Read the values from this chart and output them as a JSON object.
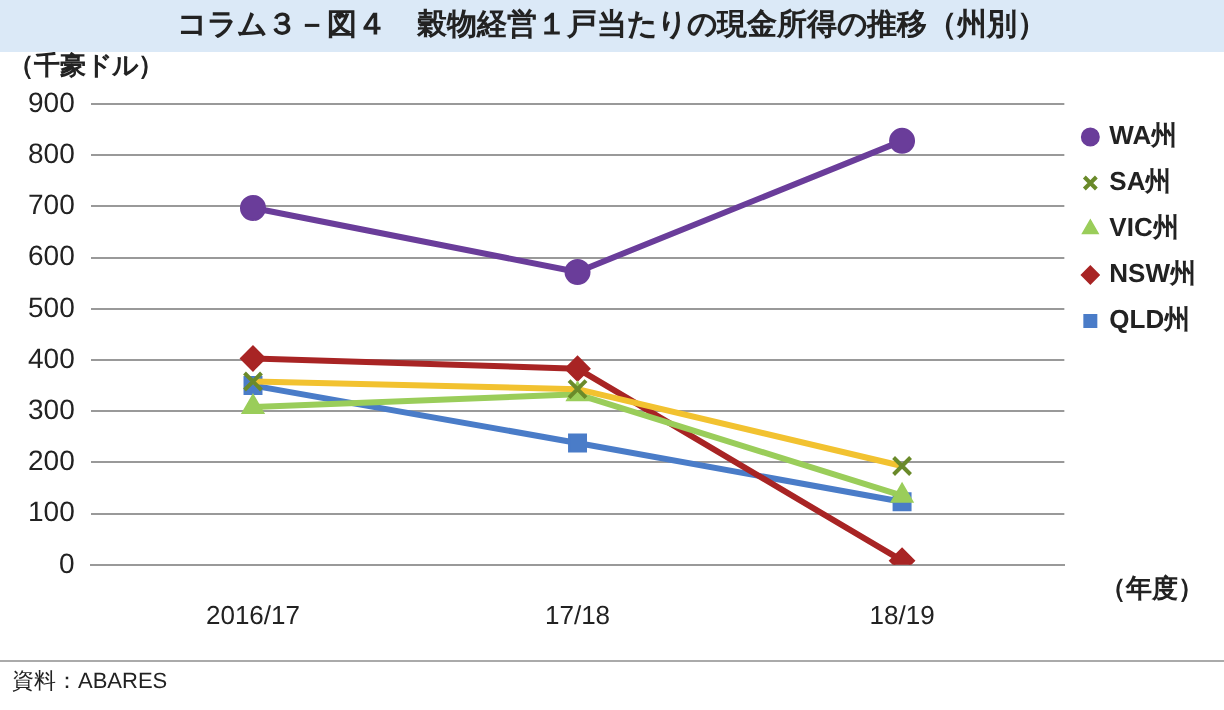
{
  "chart_data": {
    "type": "line",
    "title": "コラム３－図４　穀物経営１戸当たりの現金所得の推移（州別）",
    "ylabel": "（千豪ドル）",
    "xlabel": "（年度）",
    "categories": [
      "2016/17",
      "17/18",
      "18/19"
    ],
    "series": [
      {
        "name": "WA州",
        "color": "#6a3d9a",
        "marker": "circle",
        "values": [
          697,
          572,
          828
        ]
      },
      {
        "name": "SA州",
        "color": "#f2c230",
        "marker": "cross",
        "values": [
          358,
          343,
          193
        ]
      },
      {
        "name": "VIC州",
        "color": "#9acd5a",
        "marker": "triangle",
        "values": [
          308,
          333,
          135
        ]
      },
      {
        "name": "NSW州",
        "color": "#a82424",
        "marker": "diamond",
        "values": [
          403,
          383,
          8
        ]
      },
      {
        "name": "QLD州",
        "color": "#4a7cc8",
        "marker": "square",
        "values": [
          350,
          238,
          123
        ]
      }
    ],
    "ylim": [
      0,
      900
    ],
    "yticks": [
      0,
      100,
      200,
      300,
      400,
      500,
      600,
      700,
      800,
      900
    ],
    "grid": "y",
    "legend": "right",
    "annotations": [
      "資料：ABARES"
    ]
  }
}
